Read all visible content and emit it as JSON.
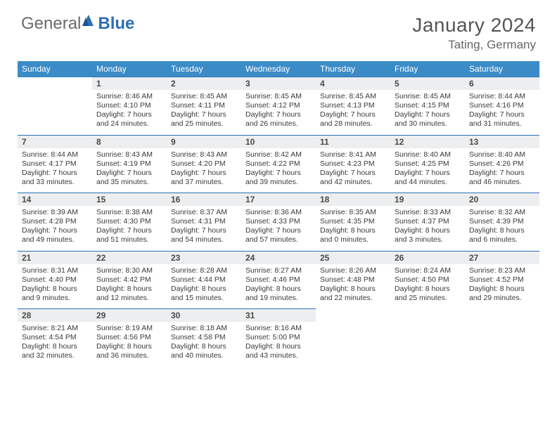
{
  "logo": {
    "general": "General",
    "blue": "Blue"
  },
  "title": "January 2024",
  "location": "Tating, Germany",
  "header_bg": "#3b8bc7",
  "border_color": "#2d6fb5",
  "daynum_bg": "#eceeef",
  "weekdays": [
    "Sunday",
    "Monday",
    "Tuesday",
    "Wednesday",
    "Thursday",
    "Friday",
    "Saturday"
  ],
  "weeks": [
    {
      "nums": [
        "",
        "1",
        "2",
        "3",
        "4",
        "5",
        "6"
      ],
      "cells": [
        null,
        {
          "sr": "8:46 AM",
          "ss": "4:10 PM",
          "dh": "7",
          "dm": "24"
        },
        {
          "sr": "8:45 AM",
          "ss": "4:11 PM",
          "dh": "7",
          "dm": "25"
        },
        {
          "sr": "8:45 AM",
          "ss": "4:12 PM",
          "dh": "7",
          "dm": "26"
        },
        {
          "sr": "8:45 AM",
          "ss": "4:13 PM",
          "dh": "7",
          "dm": "28"
        },
        {
          "sr": "8:45 AM",
          "ss": "4:15 PM",
          "dh": "7",
          "dm": "30"
        },
        {
          "sr": "8:44 AM",
          "ss": "4:16 PM",
          "dh": "7",
          "dm": "31"
        }
      ]
    },
    {
      "nums": [
        "7",
        "8",
        "9",
        "10",
        "11",
        "12",
        "13"
      ],
      "cells": [
        {
          "sr": "8:44 AM",
          "ss": "4:17 PM",
          "dh": "7",
          "dm": "33"
        },
        {
          "sr": "8:43 AM",
          "ss": "4:19 PM",
          "dh": "7",
          "dm": "35"
        },
        {
          "sr": "8:43 AM",
          "ss": "4:20 PM",
          "dh": "7",
          "dm": "37"
        },
        {
          "sr": "8:42 AM",
          "ss": "4:22 PM",
          "dh": "7",
          "dm": "39"
        },
        {
          "sr": "8:41 AM",
          "ss": "4:23 PM",
          "dh": "7",
          "dm": "42"
        },
        {
          "sr": "8:40 AM",
          "ss": "4:25 PM",
          "dh": "7",
          "dm": "44"
        },
        {
          "sr": "8:40 AM",
          "ss": "4:26 PM",
          "dh": "7",
          "dm": "46"
        }
      ]
    },
    {
      "nums": [
        "14",
        "15",
        "16",
        "17",
        "18",
        "19",
        "20"
      ],
      "cells": [
        {
          "sr": "8:39 AM",
          "ss": "4:28 PM",
          "dh": "7",
          "dm": "49"
        },
        {
          "sr": "8:38 AM",
          "ss": "4:30 PM",
          "dh": "7",
          "dm": "51"
        },
        {
          "sr": "8:37 AM",
          "ss": "4:31 PM",
          "dh": "7",
          "dm": "54"
        },
        {
          "sr": "8:36 AM",
          "ss": "4:33 PM",
          "dh": "7",
          "dm": "57"
        },
        {
          "sr": "8:35 AM",
          "ss": "4:35 PM",
          "dh": "8",
          "dm": "0"
        },
        {
          "sr": "8:33 AM",
          "ss": "4:37 PM",
          "dh": "8",
          "dm": "3"
        },
        {
          "sr": "8:32 AM",
          "ss": "4:39 PM",
          "dh": "8",
          "dm": "6"
        }
      ]
    },
    {
      "nums": [
        "21",
        "22",
        "23",
        "24",
        "25",
        "26",
        "27"
      ],
      "cells": [
        {
          "sr": "8:31 AM",
          "ss": "4:40 PM",
          "dh": "8",
          "dm": "9"
        },
        {
          "sr": "8:30 AM",
          "ss": "4:42 PM",
          "dh": "8",
          "dm": "12"
        },
        {
          "sr": "8:28 AM",
          "ss": "4:44 PM",
          "dh": "8",
          "dm": "15"
        },
        {
          "sr": "8:27 AM",
          "ss": "4:46 PM",
          "dh": "8",
          "dm": "19"
        },
        {
          "sr": "8:26 AM",
          "ss": "4:48 PM",
          "dh": "8",
          "dm": "22"
        },
        {
          "sr": "8:24 AM",
          "ss": "4:50 PM",
          "dh": "8",
          "dm": "25"
        },
        {
          "sr": "8:23 AM",
          "ss": "4:52 PM",
          "dh": "8",
          "dm": "29"
        }
      ]
    },
    {
      "nums": [
        "28",
        "29",
        "30",
        "31",
        "",
        "",
        ""
      ],
      "cells": [
        {
          "sr": "8:21 AM",
          "ss": "4:54 PM",
          "dh": "8",
          "dm": "32"
        },
        {
          "sr": "8:19 AM",
          "ss": "4:56 PM",
          "dh": "8",
          "dm": "36"
        },
        {
          "sr": "8:18 AM",
          "ss": "4:58 PM",
          "dh": "8",
          "dm": "40"
        },
        {
          "sr": "8:16 AM",
          "ss": "5:00 PM",
          "dh": "8",
          "dm": "43"
        },
        null,
        null,
        null
      ]
    }
  ],
  "labels": {
    "sunrise": "Sunrise:",
    "sunset": "Sunset:",
    "daylight": "Daylight:",
    "hours": "hours",
    "and": "and",
    "minutes": "minutes."
  }
}
